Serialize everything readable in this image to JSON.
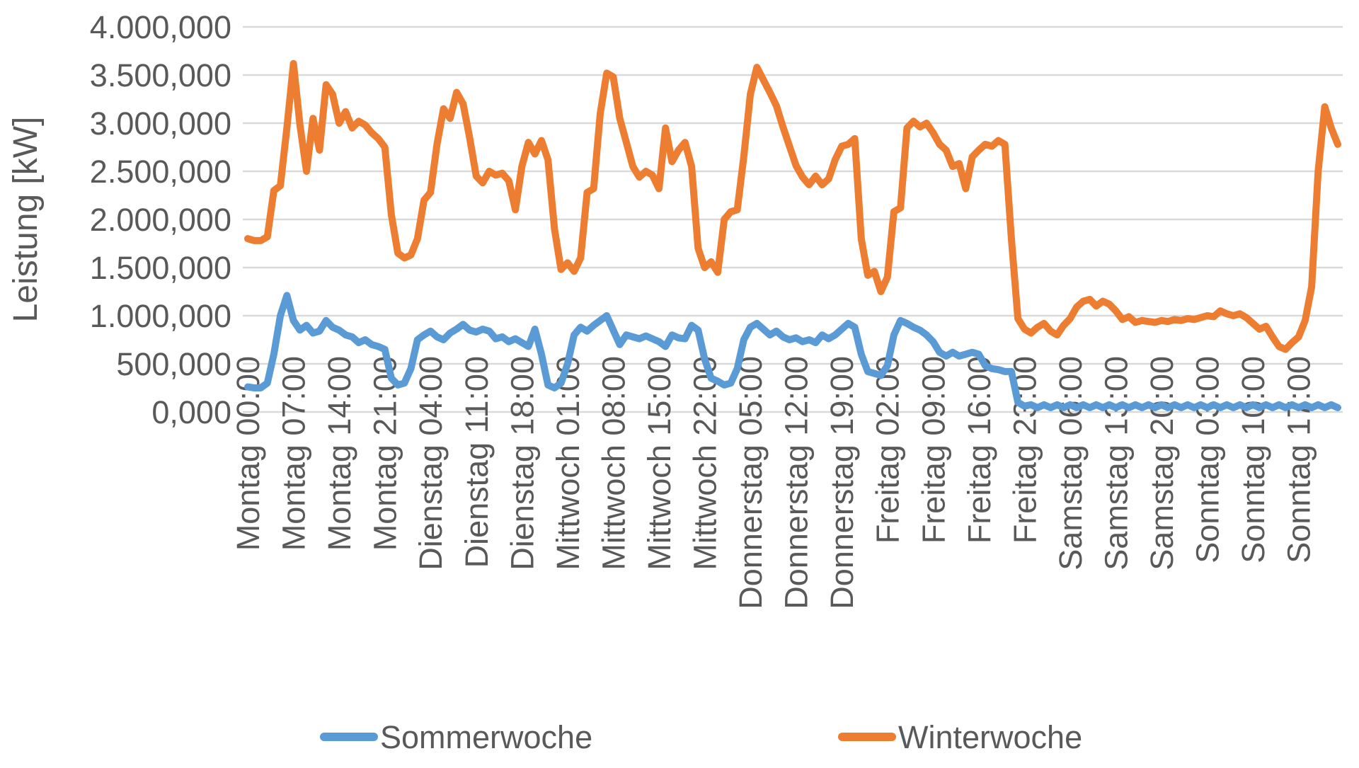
{
  "chart_data": {
    "type": "line",
    "title": "",
    "xlabel": "",
    "ylabel": "Leistung [kW]",
    "ylim": [
      0,
      4000
    ],
    "grid": true,
    "grid_color": "#D9D9D9",
    "text_color": "#595959",
    "background_color": "#FFFFFF",
    "legend_position": "bottom",
    "ytick_values": [
      0,
      500,
      1000,
      1500,
      2000,
      2500,
      3000,
      3500,
      4000
    ],
    "ytick_labels": [
      "0,000",
      "500,000",
      "1.000,000",
      "1.500,000",
      "2.000,000",
      "2.500,000",
      "3.000,000",
      "3.500,000",
      "4.000,000"
    ],
    "x_count": 168,
    "xtick_every": 7,
    "xtick_labels": [
      "Montag 00:00",
      "Montag 07:00",
      "Montag 14:00",
      "Montag 21:00",
      "Dienstag 04:00",
      "Dienstag 11:00",
      "Dienstag 18:00",
      "Mittwoch 01:00",
      "Mittwoch 08:00",
      "Mittwoch 15:00",
      "Mittwoch 22:00",
      "Donnerstag 05:00",
      "Donnerstag 12:00",
      "Donnerstag 19:00",
      "Freitag 02:00",
      "Freitag 09:00",
      "Freitag 16:00",
      "Freitag 23:00",
      "Samstag 06:00",
      "Samstag 13:00",
      "Samstag 20:00",
      "Sonntag 03:00",
      "Sonntag 10:00",
      "Sonntag 17:00"
    ],
    "series": [
      {
        "name": "Sommerwoche",
        "color": "#5B9BD5",
        "values": [
          260,
          250,
          250,
          300,
          600,
          1000,
          1210,
          950,
          850,
          900,
          820,
          840,
          950,
          880,
          850,
          800,
          780,
          720,
          750,
          700,
          680,
          650,
          350,
          280,
          300,
          450,
          750,
          800,
          840,
          780,
          750,
          820,
          860,
          910,
          850,
          830,
          860,
          840,
          760,
          780,
          730,
          760,
          720,
          680,
          860,
          600,
          280,
          250,
          300,
          500,
          800,
          880,
          840,
          900,
          950,
          1000,
          850,
          700,
          800,
          780,
          760,
          790,
          760,
          730,
          680,
          800,
          770,
          760,
          900,
          850,
          550,
          350,
          320,
          280,
          300,
          450,
          750,
          880,
          920,
          860,
          800,
          840,
          780,
          750,
          770,
          730,
          750,
          720,
          800,
          760,
          800,
          860,
          920,
          880,
          600,
          420,
          400,
          380,
          480,
          800,
          950,
          920,
          880,
          850,
          800,
          730,
          620,
          580,
          620,
          580,
          600,
          620,
          600,
          480,
          450,
          440,
          420,
          420,
          100,
          60,
          75,
          45,
          75,
          45,
          75,
          45,
          75,
          45,
          75,
          45,
          75,
          45,
          75,
          45,
          75,
          45,
          75,
          45,
          75,
          45,
          75,
          45,
          75,
          45,
          75,
          45,
          75,
          45,
          75,
          45,
          75,
          45,
          75,
          45,
          75,
          45,
          75,
          45,
          75,
          45,
          75,
          45,
          75,
          45,
          75,
          45,
          75,
          45
        ]
      },
      {
        "name": "Winterwoche",
        "color": "#ED7D31",
        "values": [
          1800,
          1780,
          1780,
          1820,
          2300,
          2350,
          2950,
          3620,
          2980,
          2500,
          3050,
          2720,
          3400,
          3300,
          3000,
          3120,
          2950,
          3020,
          2980,
          2900,
          2840,
          2750,
          2050,
          1650,
          1600,
          1630,
          1800,
          2200,
          2280,
          2780,
          3150,
          3050,
          3320,
          3200,
          2850,
          2450,
          2380,
          2500,
          2460,
          2480,
          2400,
          2100,
          2550,
          2800,
          2680,
          2820,
          2620,
          1900,
          1480,
          1550,
          1460,
          1600,
          2280,
          2320,
          3100,
          3520,
          3480,
          3050,
          2800,
          2550,
          2440,
          2500,
          2460,
          2320,
          2950,
          2600,
          2720,
          2800,
          2550,
          1700,
          1500,
          1560,
          1450,
          2000,
          2080,
          2100,
          2650,
          3300,
          3580,
          3450,
          3320,
          3180,
          2960,
          2760,
          2560,
          2440,
          2360,
          2450,
          2360,
          2420,
          2620,
          2760,
          2780,
          2840,
          1800,
          1420,
          1460,
          1250,
          1400,
          2080,
          2120,
          2950,
          3020,
          2960,
          3000,
          2900,
          2780,
          2720,
          2550,
          2580,
          2320,
          2650,
          2720,
          2780,
          2760,
          2820,
          2780,
          1800,
          970,
          860,
          820,
          880,
          920,
          840,
          800,
          900,
          970,
          1090,
          1150,
          1170,
          1100,
          1150,
          1120,
          1050,
          960,
          990,
          930,
          950,
          940,
          930,
          950,
          940,
          960,
          950,
          970,
          960,
          980,
          1000,
          990,
          1050,
          1020,
          1000,
          1020,
          980,
          920,
          860,
          890,
          780,
          680,
          650,
          720,
          780,
          950,
          1300,
          2500,
          3170,
          2950,
          2780
        ]
      }
    ]
  }
}
